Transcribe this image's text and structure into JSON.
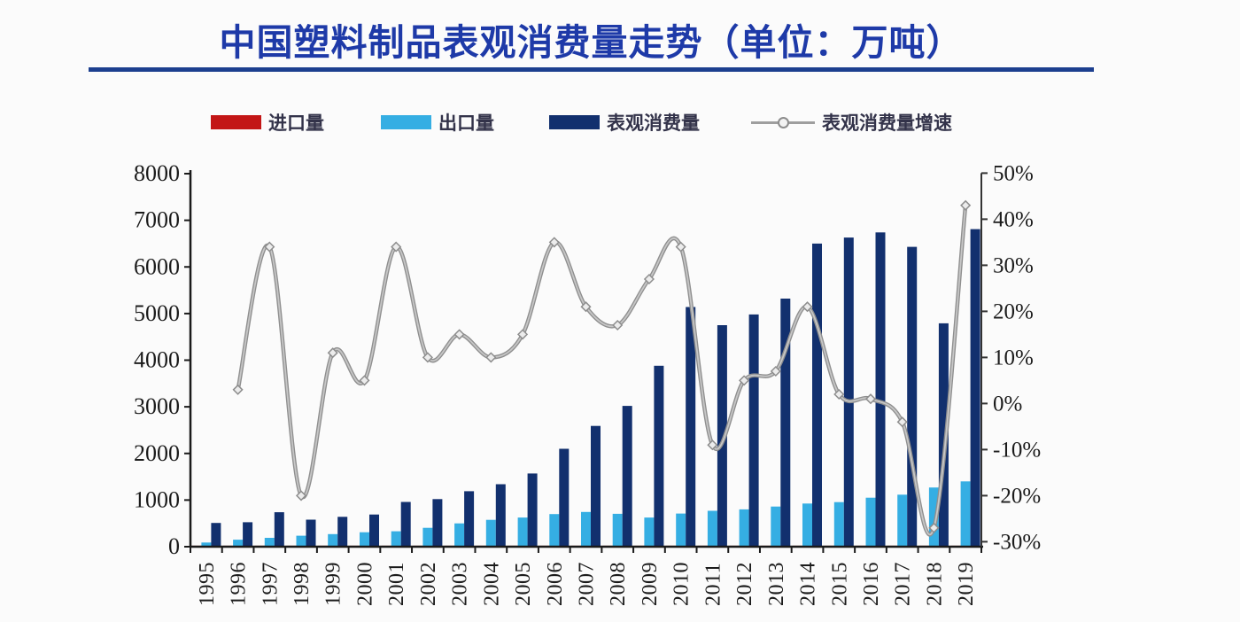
{
  "title": "中国塑料制品表观消费量走势（单位：万吨）",
  "colors": {
    "title_text": "#1e3aa8",
    "title_rule": "#1c3f8f",
    "import_red": "#c31616",
    "export_blue": "#35aee3",
    "consumption_navy": "#12306e",
    "growth_line_gray": "#9e9e9e",
    "axis": "#1a1a1a",
    "background": "#fbfbfb"
  },
  "chart_data": {
    "type": "combo",
    "title": "中国塑料制品表观消费量走势（单位：万吨）",
    "legend_position": "top",
    "grid": false,
    "categories": [
      "1995",
      "1996",
      "1997",
      "1998",
      "1999",
      "2000",
      "2001",
      "2002",
      "2003",
      "2004",
      "2005",
      "2006",
      "2007",
      "2008",
      "2009",
      "2010",
      "2011",
      "2012",
      "2013",
      "2014",
      "2015",
      "2016",
      "2017",
      "2018",
      "2019"
    ],
    "left_axis": {
      "min": 0,
      "max": 8000,
      "step": 1000
    },
    "right_axis": {
      "min": -30,
      "max": 50,
      "step": 10,
      "suffix": "%"
    },
    "series": [
      {
        "name": "进口量",
        "type": "bar",
        "axis": "left",
        "color": "#c31616",
        "values": [
          20,
          20,
          20,
          20,
          20,
          20,
          20,
          20,
          20,
          20,
          20,
          20,
          20,
          20,
          20,
          20,
          20,
          20,
          20,
          20,
          20,
          20,
          20,
          20,
          20
        ]
      },
      {
        "name": "出口量",
        "type": "bar",
        "axis": "left",
        "color": "#35aee3",
        "values": [
          90,
          150,
          190,
          235,
          270,
          310,
          330,
          405,
          500,
          575,
          625,
          700,
          745,
          705,
          625,
          710,
          770,
          800,
          860,
          925,
          955,
          1050,
          1115,
          1270,
          1400
        ]
      },
      {
        "name": "表观消费量",
        "type": "bar",
        "axis": "left",
        "color": "#12306e",
        "values": [
          510,
          525,
          740,
          580,
          640,
          690,
          960,
          1020,
          1190,
          1340,
          1570,
          2100,
          2590,
          3020,
          3880,
          5140,
          4750,
          4980,
          5320,
          6500,
          6630,
          6740,
          6430,
          4790,
          6810
        ]
      },
      {
        "name": "表观消费量增速",
        "type": "line",
        "axis": "right",
        "suffix": "%",
        "color": "#9e9e9e",
        "first_category": "1996",
        "values": [
          3,
          34,
          -20,
          11,
          5,
          34,
          10,
          15,
          10,
          15,
          35,
          21,
          17,
          27,
          34,
          -9,
          5,
          7,
          21,
          2,
          1,
          -4,
          -27,
          43
        ]
      }
    ]
  }
}
